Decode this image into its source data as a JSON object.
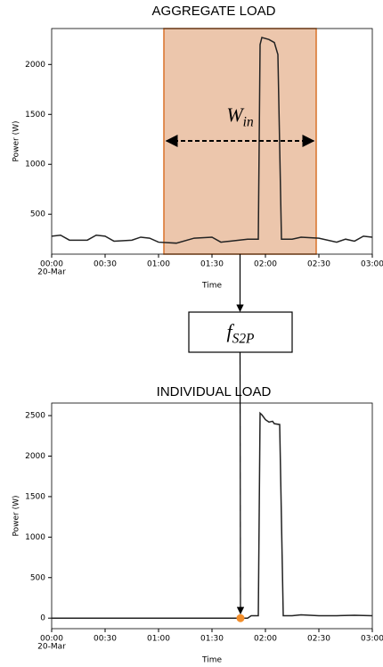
{
  "chart_data": [
    {
      "type": "line",
      "title": "AGGREGATE LOAD",
      "xlabel": "Time",
      "ylabel": "Power (W)",
      "x": [
        0,
        5,
        10,
        20,
        25,
        30,
        35,
        45,
        50,
        55,
        60,
        70,
        80,
        90,
        95,
        100,
        110,
        116,
        117,
        118,
        122,
        125,
        127,
        129,
        135,
        140,
        150,
        160,
        165,
        170,
        175,
        180
      ],
      "values": [
        280,
        290,
        240,
        240,
        290,
        280,
        230,
        240,
        270,
        260,
        220,
        210,
        260,
        270,
        220,
        230,
        250,
        250,
        2200,
        2270,
        2250,
        2220,
        2100,
        250,
        250,
        270,
        260,
        220,
        250,
        230,
        280,
        270
      ],
      "color": "#222222",
      "xlim": [
        0,
        180
      ],
      "ylim": [
        100,
        2360
      ],
      "xticks": [
        {
          "value": 0,
          "label": "00:00"
        },
        {
          "value": 30,
          "label": "00:30"
        },
        {
          "value": 60,
          "label": "01:00"
        },
        {
          "value": 90,
          "label": "01:30"
        },
        {
          "value": 120,
          "label": "02:00"
        },
        {
          "value": 150,
          "label": "02:30"
        },
        {
          "value": 180,
          "label": "03:00"
        }
      ],
      "xtick_sublabel": "20-Mar",
      "yticks": [
        500,
        1000,
        1500,
        2000
      ],
      "window": {
        "start": 63,
        "end": 148.5,
        "color": "#ecc6ac",
        "edge_color": "#d9722a",
        "label": {
          "base": "W",
          "sub": "in"
        }
      }
    },
    {
      "type": "line",
      "title": "INDIVIDUAL LOAD",
      "xlabel": "Time",
      "ylabel": "Power (W)",
      "x": [
        0,
        10,
        20,
        30,
        40,
        50,
        60,
        70,
        80,
        90,
        100,
        110,
        112,
        116,
        117,
        118,
        120,
        122,
        124,
        125,
        128,
        130,
        135,
        140,
        150,
        160,
        170,
        180
      ],
      "values": [
        0,
        0,
        0,
        0,
        0,
        0,
        0,
        0,
        0,
        0,
        0,
        0,
        30,
        30,
        2530,
        2510,
        2450,
        2420,
        2430,
        2400,
        2390,
        30,
        30,
        40,
        30,
        30,
        35,
        30
      ],
      "color": "#222222",
      "xlim": [
        0,
        180
      ],
      "ylim": [
        -130,
        2655
      ],
      "xticks": [
        {
          "value": 0,
          "label": "00:00"
        },
        {
          "value": 30,
          "label": "00:30"
        },
        {
          "value": 60,
          "label": "01:00"
        },
        {
          "value": 90,
          "label": "01:30"
        },
        {
          "value": 120,
          "label": "02:00"
        },
        {
          "value": 150,
          "label": "02:30"
        },
        {
          "value": 180,
          "label": "03:00"
        }
      ],
      "xtick_sublabel": "20-Mar",
      "yticks": [
        0,
        500,
        1000,
        1500,
        2000,
        2500
      ],
      "marker": {
        "x": 106,
        "y": 0,
        "color": "#f28e2b"
      }
    }
  ],
  "model": {
    "label": {
      "base": "f",
      "sub": "S2P"
    }
  }
}
